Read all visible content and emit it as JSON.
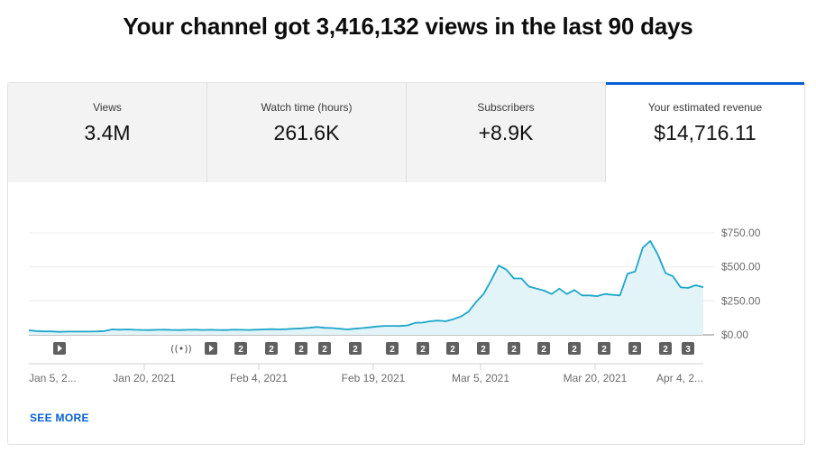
{
  "headline": "Your channel got 3,416,132 views in the last 90 days",
  "tabs": [
    {
      "label": "Views",
      "value": "3.4M",
      "active": false
    },
    {
      "label": "Watch time (hours)",
      "value": "261.6K",
      "active": false
    },
    {
      "label": "Subscribers",
      "value": "+8.9K",
      "active": false
    },
    {
      "label": "Your estimated revenue",
      "value": "$14,716.11",
      "active": true
    }
  ],
  "see_more": "SEE MORE",
  "colors": {
    "accent": "#065fd4",
    "line": "#1ea6c9",
    "fill": "#e3f4f9"
  },
  "chart_data": {
    "type": "area",
    "x_start": "Jan 5, 2021",
    "x_end": "Apr 4, 2021",
    "x_tick_labels": [
      "Jan 5, 2...",
      "Jan 20, 2021",
      "Feb 4, 2021",
      "Feb 19, 2021",
      "Mar 5, 2021",
      "Mar 20, 2021",
      "Apr 4, 2..."
    ],
    "y_tick_labels": [
      "$0.00",
      "$250.00",
      "$500.00",
      "$750.00"
    ],
    "ylim": [
      0,
      750
    ],
    "grid": true,
    "values": [
      33,
      28,
      25,
      25,
      22,
      24,
      24,
      24,
      24,
      25,
      28,
      40,
      38,
      40,
      37,
      36,
      35,
      37,
      38,
      36,
      35,
      37,
      38,
      36,
      37,
      36,
      35,
      38,
      37,
      36,
      38,
      40,
      42,
      40,
      42,
      45,
      48,
      52,
      58,
      52,
      50,
      45,
      40,
      45,
      50,
      55,
      62,
      66,
      66,
      65,
      70,
      88,
      90,
      100,
      105,
      100,
      115,
      135,
      170,
      240,
      300,
      400,
      510,
      480,
      415,
      415,
      355,
      340,
      325,
      300,
      340,
      300,
      330,
      290,
      290,
      285,
      300,
      295,
      290,
      450,
      465,
      640,
      690,
      590,
      455,
      430,
      350,
      345,
      365,
      350
    ],
    "markers": [
      "play",
      "live",
      "play",
      "2",
      "2",
      "2",
      "2",
      "2",
      "2",
      "2",
      "2",
      "2",
      "2",
      "2",
      "2",
      "2",
      "2",
      "2",
      "3"
    ]
  }
}
